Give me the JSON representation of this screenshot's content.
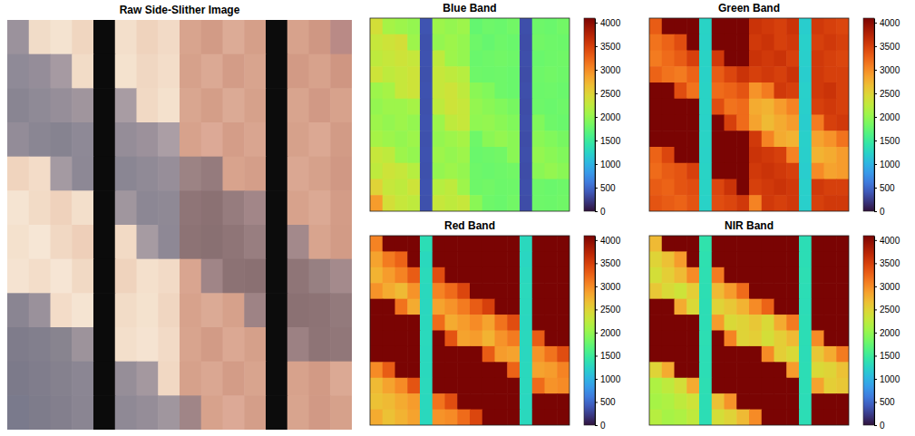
{
  "chart_data": [
    {
      "type": "image",
      "title": "Raw Side-Slither Image",
      "tick_labels": false,
      "colors": [
        [
          "#9b929c",
          "#f1dcc8",
          "#f4e3d0",
          "#f0d6c0",
          "#0b0b0b",
          "#f3dfcb",
          "#efd3bd",
          "#f2dac6",
          "#d8a48e",
          "#d29b86",
          "#dcab96",
          "#d59f89",
          "#0c0c0c",
          "#d7a28c",
          "#cf9783",
          "#b98a86"
        ],
        [
          "#8f8a97",
          "#958d99",
          "#a69aa2",
          "#f2dcc7",
          "#0b0b0b",
          "#f4e2ce",
          "#f0d7c2",
          "#f3ddc9",
          "#d6a18b",
          "#dba994",
          "#d39c87",
          "#d8a48e",
          "#0c0c0c",
          "#d29a85",
          "#d7a28c",
          "#cf9682"
        ],
        [
          "#898592",
          "#8f8a96",
          "#968e99",
          "#a0959d",
          "#0b0b0b",
          "#a89ca3",
          "#f1d9c4",
          "#f4e1cd",
          "#d9a690",
          "#d49e88",
          "#dbaa95",
          "#d6a18b",
          "#0c0c0c",
          "#d8a48e",
          "#d19985",
          "#d7a28c"
        ],
        [
          "#938c98",
          "#8a8693",
          "#868390",
          "#8e8996",
          "#0b0b0b",
          "#958d98",
          "#9c919b",
          "#ab9ea5",
          "#d7a28c",
          "#dca996",
          "#d49d88",
          "#d9a590",
          "#0c0c0c",
          "#d6a18b",
          "#dba893",
          "#d29b86"
        ],
        [
          "#f0d4be",
          "#f3dcc8",
          "#a49aa2",
          "#8d8895",
          "#0b0b0b",
          "#8a8693",
          "#908a96",
          "#978e99",
          "#9c8384",
          "#957b7d",
          "#d8a38d",
          "#d49e89",
          "#0c0c0c",
          "#daa792",
          "#d6a18b",
          "#d09884"
        ],
        [
          "#f5e4d2",
          "#f2dbc6",
          "#efd2bc",
          "#f3dfcb",
          "#0b0b0b",
          "#a0969e",
          "#8c8794",
          "#8f8995",
          "#8f7577",
          "#8b7173",
          "#967c7e",
          "#a28688",
          "#0c0c0c",
          "#d7a28c",
          "#dba994",
          "#d39c87"
        ],
        [
          "#f4e1cd",
          "#f6e6d5",
          "#f1d8c3",
          "#eecfb9",
          "#0b0b0b",
          "#f2dac5",
          "#a69ba2",
          "#8e8895",
          "#8d7375",
          "#897072",
          "#8f7577",
          "#987e80",
          "#0c0c0c",
          "#a3898b",
          "#d8a48e",
          "#d29b86"
        ],
        [
          "#f5e3d1",
          "#f3ddc9",
          "#f6e5d4",
          "#f1d9c4",
          "#0b0b0b",
          "#efd3bd",
          "#f4e0cc",
          "#f2dac6",
          "#d9a590",
          "#a08587",
          "#8c7274",
          "#8a7072",
          "#0c0c0c",
          "#8f7577",
          "#978082",
          "#a48a8c"
        ],
        [
          "#8a8592",
          "#9a919b",
          "#f3dcc8",
          "#f5e4d2",
          "#0b0b0b",
          "#f2dcc7",
          "#f4e2ce",
          "#f0d6c1",
          "#d7a28c",
          "#dbaa95",
          "#d6a18b",
          "#9e8385",
          "#0c0c0c",
          "#8b7173",
          "#8d7375",
          "#937a7c"
        ],
        [
          "#7f7c8b",
          "#827f8d",
          "#88848f",
          "#9d939b",
          "#0b0b0b",
          "#f3dfcb",
          "#f5e3d1",
          "#f2dac6",
          "#d8a48e",
          "#d29b86",
          "#dba893",
          "#d5a08a",
          "#0c0c0c",
          "#9c8183",
          "#8e7476",
          "#917779"
        ],
        [
          "#7c7a8a",
          "#807d8c",
          "#85818e",
          "#8b8693",
          "#0b0b0b",
          "#968e98",
          "#a4989f",
          "#f1d8c3",
          "#d6a18b",
          "#daa792",
          "#d39c87",
          "#d8a48e",
          "#0c0c0c",
          "#d7a28c",
          "#d29a85",
          "#dba994"
        ],
        [
          "#7a7a8c",
          "#7e7c8b",
          "#837f8d",
          "#8a8592",
          "#0b0b0b",
          "#8f8995",
          "#958d98",
          "#a0969e",
          "#a08587",
          "#d7a28c",
          "#dca996",
          "#d49e89",
          "#0c0c0c",
          "#d8a48e",
          "#d19985",
          "#d6a18b"
        ]
      ]
    },
    {
      "type": "heatmap",
      "title": "Blue Band",
      "tick_labels": false,
      "clim": [
        0,
        4095
      ],
      "cticks": [
        0,
        500,
        1000,
        1500,
        2000,
        2500,
        3000,
        3500,
        4000
      ],
      "cells": [
        [
          2400,
          2100,
          2050,
          2000,
          380,
          2050,
          2000,
          2050,
          1750,
          1800,
          1780,
          1820,
          350,
          1800,
          1780,
          1820
        ],
        [
          2300,
          2350,
          2400,
          2050,
          360,
          2000,
          2050,
          2000,
          1800,
          1760,
          1800,
          1780,
          340,
          1820,
          1800,
          1790
        ],
        [
          2250,
          2300,
          2350,
          2300,
          370,
          2250,
          2050,
          2000,
          1780,
          1800,
          1820,
          1800,
          350,
          1780,
          1800,
          1810
        ],
        [
          2350,
          2250,
          2300,
          2350,
          360,
          2300,
          2250,
          2200,
          1800,
          1790,
          1800,
          1780,
          340,
          1800,
          1820,
          1800
        ],
        [
          2050,
          2100,
          2300,
          2350,
          370,
          2300,
          2350,
          2250,
          1950,
          1900,
          1800,
          1780,
          350,
          1790,
          1800,
          1780
        ],
        [
          2000,
          2050,
          2050,
          2100,
          360,
          2250,
          2350,
          2300,
          2000,
          1950,
          1900,
          1850,
          340,
          1800,
          1780,
          1800
        ],
        [
          2050,
          2000,
          2050,
          2000,
          370,
          2050,
          2250,
          2300,
          1980,
          2000,
          1950,
          1900,
          350,
          1900,
          1800,
          1780
        ],
        [
          2100,
          2050,
          2000,
          2050,
          360,
          2000,
          2050,
          2100,
          1800,
          1950,
          2000,
          1950,
          340,
          1950,
          1900,
          1850
        ],
        [
          2300,
          2250,
          2050,
          2000,
          370,
          2050,
          2000,
          2050,
          1780,
          1800,
          1820,
          1950,
          350,
          2000,
          1950,
          1900
        ],
        [
          2250,
          2350,
          2300,
          2200,
          360,
          2000,
          2050,
          2000,
          1800,
          1780,
          1800,
          1820,
          340,
          1950,
          2000,
          1950
        ],
        [
          2500,
          2300,
          2250,
          2350,
          370,
          2200,
          2250,
          2050,
          1800,
          1820,
          1790,
          1800,
          350,
          1800,
          1780,
          1800
        ],
        [
          2900,
          2400,
          2300,
          2250,
          360,
          2300,
          2250,
          2300,
          1950,
          1800,
          1780,
          1820,
          340,
          1800,
          1790,
          1810
        ]
      ]
    },
    {
      "type": "heatmap",
      "title": "Green Band",
      "tick_labels": false,
      "clim": [
        0,
        4095
      ],
      "cticks": [
        0,
        500,
        1000,
        1500,
        2000,
        2500,
        3000,
        3500,
        4000
      ],
      "cells": [
        [
          3300,
          4095,
          4095,
          4095,
          1250,
          4095,
          4095,
          4095,
          3600,
          3550,
          3500,
          3600,
          1200,
          3550,
          3500,
          3450
        ],
        [
          3150,
          3250,
          3400,
          4095,
          1240,
          4095,
          4095,
          4095,
          3550,
          3600,
          3500,
          3550,
          1220,
          3500,
          3550,
          3500
        ],
        [
          3100,
          3200,
          3300,
          3500,
          1250,
          3550,
          4095,
          4095,
          3600,
          3550,
          3600,
          3500,
          1210,
          3550,
          3500,
          3450
        ],
        [
          3250,
          3150,
          3100,
          3250,
          1240,
          3300,
          3450,
          3600,
          3500,
          3550,
          3500,
          3600,
          1200,
          3550,
          3500,
          3500
        ],
        [
          4095,
          4095,
          3400,
          3150,
          1250,
          3200,
          3250,
          3350,
          2950,
          3100,
          3550,
          3500,
          1220,
          3550,
          3600,
          3500
        ],
        [
          4095,
          4095,
          4095,
          4095,
          1250,
          3400,
          3150,
          3200,
          2800,
          2750,
          2900,
          3050,
          1210,
          3500,
          3550,
          3500
        ],
        [
          4095,
          4095,
          4095,
          4095,
          1240,
          4095,
          3500,
          3200,
          2850,
          2700,
          2800,
          2900,
          1200,
          3100,
          3500,
          3550
        ],
        [
          4095,
          4095,
          4095,
          4095,
          1250,
          4095,
          4095,
          4095,
          3550,
          3050,
          2800,
          2750,
          1220,
          2850,
          2950,
          3150
        ],
        [
          3250,
          3450,
          4095,
          4095,
          1240,
          4095,
          4095,
          4095,
          3600,
          3550,
          3500,
          3050,
          1210,
          2750,
          2800,
          2900
        ],
        [
          3200,
          3300,
          3350,
          3500,
          1250,
          4095,
          4095,
          4095,
          3550,
          3600,
          3550,
          3500,
          1200,
          3000,
          2850,
          2900
        ],
        [
          3300,
          3250,
          3350,
          3400,
          1250,
          3450,
          3600,
          4095,
          3500,
          3550,
          3600,
          3550,
          1220,
          3550,
          3500,
          3500
        ],
        [
          3350,
          3300,
          3250,
          3350,
          1240,
          3400,
          3450,
          3550,
          3050,
          3550,
          3500,
          3550,
          1210,
          3500,
          3550,
          3550
        ]
      ]
    },
    {
      "type": "heatmap",
      "title": "Red Band",
      "tick_labels": false,
      "clim": [
        0,
        4095
      ],
      "cticks": [
        0,
        500,
        1000,
        1500,
        2000,
        2500,
        3000,
        3500,
        4000
      ],
      "cells": [
        [
          3050,
          4095,
          4095,
          4095,
          1350,
          4095,
          4095,
          4095,
          4095,
          4095,
          4095,
          4095,
          1300,
          4095,
          4095,
          4095
        ],
        [
          2850,
          3100,
          3250,
          4095,
          1300,
          4095,
          4095,
          4095,
          4095,
          4095,
          4095,
          4095,
          1280,
          4095,
          4095,
          4095
        ],
        [
          2750,
          2900,
          3050,
          3300,
          1320,
          3400,
          4095,
          4095,
          4095,
          4095,
          4095,
          4095,
          1300,
          4095,
          4095,
          4095
        ],
        [
          2950,
          2800,
          2700,
          2950,
          1300,
          3050,
          3200,
          3450,
          4095,
          4095,
          4095,
          4095,
          1310,
          4095,
          4095,
          4095
        ],
        [
          4095,
          4095,
          3150,
          2800,
          1290,
          2850,
          2950,
          3100,
          3300,
          3500,
          4095,
          4095,
          1300,
          4095,
          4095,
          4095
        ],
        [
          4095,
          4095,
          4095,
          4095,
          1300,
          3200,
          2800,
          2900,
          3000,
          2850,
          3150,
          3400,
          1290,
          4095,
          4095,
          4095
        ],
        [
          4095,
          4095,
          4095,
          4095,
          1310,
          4095,
          3350,
          2850,
          2900,
          2750,
          2950,
          3100,
          1300,
          3300,
          4095,
          4095
        ],
        [
          4095,
          4095,
          4095,
          4095,
          1300,
          4095,
          4095,
          4095,
          4095,
          3300,
          2900,
          2850,
          1290,
          2950,
          3150,
          3400
        ],
        [
          3000,
          3300,
          4095,
          4095,
          1300,
          4095,
          4095,
          4095,
          4095,
          4095,
          4095,
          3250,
          1300,
          2850,
          2900,
          3050
        ],
        [
          2700,
          2850,
          3000,
          3350,
          1310,
          4095,
          4095,
          4095,
          4095,
          4095,
          4095,
          4095,
          1300,
          3200,
          2950,
          3000
        ],
        [
          2650,
          2700,
          2800,
          2900,
          1300,
          3150,
          3400,
          4095,
          4095,
          4095,
          4095,
          4095,
          1290,
          4095,
          4095,
          4095
        ],
        [
          2800,
          2650,
          2750,
          2850,
          1300,
          2950,
          3000,
          3200,
          3450,
          4095,
          4095,
          4095,
          1300,
          4095,
          4095,
          4095
        ]
      ]
    },
    {
      "type": "heatmap",
      "title": "NIR Band",
      "tick_labels": false,
      "clim": [
        0,
        4095
      ],
      "cticks": [
        0,
        500,
        1000,
        1500,
        2000,
        2500,
        3000,
        3500,
        4000
      ],
      "cells": [
        [
          2700,
          4095,
          4095,
          4095,
          1400,
          4095,
          4095,
          4095,
          4095,
          4095,
          4095,
          4095,
          1350,
          4095,
          4095,
          4095
        ],
        [
          2500,
          2650,
          2900,
          4095,
          1380,
          4095,
          4095,
          4095,
          4095,
          4095,
          4095,
          4095,
          1350,
          4095,
          4095,
          4095
        ],
        [
          2400,
          2550,
          2700,
          3000,
          1370,
          3100,
          4095,
          4095,
          4095,
          4095,
          4095,
          4095,
          1360,
          4095,
          4095,
          4095
        ],
        [
          2600,
          2450,
          2350,
          2550,
          1360,
          2700,
          2900,
          3200,
          4095,
          4095,
          4095,
          4095,
          1350,
          4095,
          4095,
          4095
        ],
        [
          4095,
          4095,
          2800,
          2450,
          1350,
          2500,
          2600,
          2750,
          3000,
          3250,
          4095,
          4095,
          1340,
          4095,
          4095,
          4095
        ],
        [
          4095,
          4095,
          4095,
          4095,
          1350,
          2900,
          2450,
          2500,
          2600,
          2450,
          2800,
          3100,
          1350,
          4095,
          4095,
          4095
        ],
        [
          4095,
          4095,
          4095,
          4095,
          1360,
          4095,
          3050,
          2500,
          2550,
          2400,
          2550,
          2700,
          1350,
          3000,
          4095,
          4095
        ],
        [
          4095,
          4095,
          4095,
          4095,
          1350,
          4095,
          4095,
          4095,
          4095,
          3000,
          2550,
          2450,
          1340,
          2600,
          2800,
          3100
        ],
        [
          2500,
          2800,
          4095,
          4095,
          1350,
          4095,
          4095,
          4095,
          4095,
          4095,
          4095,
          2900,
          1350,
          2450,
          2500,
          2650
        ],
        [
          2150,
          2250,
          2400,
          2800,
          1360,
          4095,
          4095,
          4095,
          4095,
          4095,
          4095,
          4095,
          1350,
          2850,
          2550,
          2600
        ],
        [
          2100,
          2150,
          2250,
          2350,
          1350,
          2650,
          2950,
          4095,
          4095,
          4095,
          4095,
          4095,
          1340,
          4095,
          4095,
          4095
        ],
        [
          2200,
          2100,
          2150,
          2250,
          1350,
          2400,
          2500,
          2700,
          3000,
          4095,
          4095,
          4095,
          1350,
          4095,
          4095,
          4095
        ]
      ]
    }
  ]
}
